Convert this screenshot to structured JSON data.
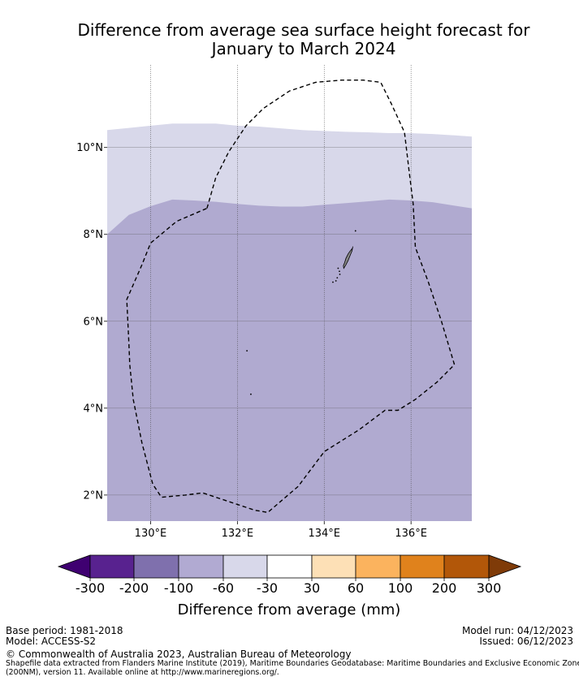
{
  "title": {
    "line1": "Difference from average sea surface height forecast for",
    "line2": "January to March 2024"
  },
  "map": {
    "extent": {
      "lon_min": 129.0,
      "lon_max": 137.4,
      "lat_min": 1.4,
      "lat_max": 11.9
    },
    "x_ticks": [
      {
        "value": 130,
        "label": "130°E"
      },
      {
        "value": 132,
        "label": "132°E"
      },
      {
        "value": 134,
        "label": "134°E"
      },
      {
        "value": 136,
        "label": "136°E"
      }
    ],
    "y_ticks": [
      {
        "value": 10,
        "label": "10°N"
      },
      {
        "value": 8,
        "label": "8°N"
      },
      {
        "value": 6,
        "label": "6°N"
      },
      {
        "value": 4,
        "label": "4°N"
      },
      {
        "value": 2,
        "label": "2°N"
      }
    ],
    "colors": {
      "band_minus60_to_minus30": "#d8d8ea",
      "band_minus100_to_minus60": "#b0aad0",
      "eez_boundary": "#000000",
      "land": "#888888"
    },
    "band_minus60_to_minus30_top": [
      [
        129.0,
        10.4
      ],
      [
        129.5,
        10.45
      ],
      [
        130.0,
        10.5
      ],
      [
        130.5,
        10.55
      ],
      [
        131.0,
        10.55
      ],
      [
        131.5,
        10.55
      ],
      [
        132.0,
        10.5
      ],
      [
        132.5,
        10.48
      ],
      [
        133.0,
        10.44
      ],
      [
        133.5,
        10.4
      ],
      [
        134.0,
        10.38
      ],
      [
        134.5,
        10.36
      ],
      [
        135.0,
        10.35
      ],
      [
        135.5,
        10.33
      ],
      [
        136.0,
        10.33
      ],
      [
        136.5,
        10.31
      ],
      [
        137.0,
        10.28
      ],
      [
        137.4,
        10.25
      ]
    ],
    "band_minus100_to_minus60_top": [
      [
        129.0,
        8.0
      ],
      [
        129.5,
        8.45
      ],
      [
        130.0,
        8.65
      ],
      [
        130.5,
        8.8
      ],
      [
        131.0,
        8.78
      ],
      [
        131.5,
        8.75
      ],
      [
        132.0,
        8.7
      ],
      [
        132.5,
        8.66
      ],
      [
        133.0,
        8.64
      ],
      [
        133.5,
        8.64
      ],
      [
        134.0,
        8.68
      ],
      [
        134.5,
        8.72
      ],
      [
        135.0,
        8.76
      ],
      [
        135.5,
        8.8
      ],
      [
        136.0,
        8.78
      ],
      [
        136.5,
        8.74
      ],
      [
        137.0,
        8.66
      ],
      [
        137.4,
        8.6
      ]
    ],
    "eez_boundary": [
      [
        131.3,
        8.6
      ],
      [
        131.5,
        9.3
      ],
      [
        131.8,
        9.9
      ],
      [
        132.2,
        10.5
      ],
      [
        132.6,
        10.9
      ],
      [
        133.2,
        11.3
      ],
      [
        133.8,
        11.5
      ],
      [
        134.4,
        11.55
      ],
      [
        134.9,
        11.55
      ],
      [
        135.3,
        11.5
      ],
      [
        135.55,
        11.0
      ],
      [
        135.85,
        10.35
      ],
      [
        135.95,
        9.5
      ],
      [
        136.05,
        8.7
      ],
      [
        136.1,
        7.7
      ],
      [
        136.4,
        6.9
      ],
      [
        136.7,
        6.0
      ],
      [
        137.0,
        5.0
      ],
      [
        136.6,
        4.6
      ],
      [
        136.1,
        4.2
      ],
      [
        135.7,
        3.95
      ],
      [
        135.4,
        3.95
      ],
      [
        134.8,
        3.5
      ],
      [
        134.0,
        3.0
      ],
      [
        133.4,
        2.2
      ],
      [
        132.7,
        1.6
      ],
      [
        132.4,
        1.65
      ],
      [
        131.8,
        1.85
      ],
      [
        131.2,
        2.05
      ],
      [
        130.8,
        2.0
      ],
      [
        130.25,
        1.95
      ],
      [
        130.05,
        2.25
      ],
      [
        129.8,
        3.2
      ],
      [
        129.6,
        4.2
      ],
      [
        129.52,
        5.0
      ],
      [
        129.5,
        5.5
      ],
      [
        129.45,
        6.5
      ],
      [
        129.8,
        7.3
      ],
      [
        130.0,
        7.8
      ],
      [
        130.6,
        8.3
      ],
      [
        131.3,
        8.6
      ]
    ],
    "land": {
      "main_island": [
        [
          134.45,
          7.22
        ],
        [
          134.5,
          7.3
        ],
        [
          134.55,
          7.4
        ],
        [
          134.6,
          7.52
        ],
        [
          134.64,
          7.62
        ],
        [
          134.66,
          7.72
        ],
        [
          134.65,
          7.68
        ],
        [
          134.6,
          7.62
        ],
        [
          134.55,
          7.55
        ],
        [
          134.5,
          7.45
        ],
        [
          134.47,
          7.35
        ],
        [
          134.44,
          7.28
        ]
      ],
      "small_islands": [
        [
          134.36,
          7.08
        ],
        [
          134.3,
          7.0
        ],
        [
          134.27,
          6.93
        ],
        [
          134.2,
          6.9
        ],
        [
          134.35,
          7.15
        ],
        [
          134.32,
          7.22
        ],
        [
          134.72,
          8.08
        ],
        [
          132.22,
          5.32
        ],
        [
          132.31,
          4.32
        ]
      ]
    }
  },
  "colorbar": {
    "colors": [
      "#3f0071",
      "#58228f",
      "#7f70ad",
      "#b1aad2",
      "#d8d8ea",
      "#ffffff",
      "#fde0b6",
      "#fbb35e",
      "#e0821c",
      "#b25709",
      "#7f3b08"
    ],
    "tick_labels": [
      "-300",
      "-200",
      "-100",
      "-60",
      "-30",
      "30",
      "60",
      "100",
      "200",
      "300"
    ],
    "label": "Difference from average (mm)"
  },
  "footer": {
    "base_period": "Base period: 1981-2018",
    "model": "Model: ACCESS-S2",
    "model_run": "Model run: 04/12/2023",
    "issued": "Issued: 06/12/2023",
    "copyright": "© Commonwealth of Australia 2023, Australian Bureau of Meteorology",
    "shapefile_line1": "Shapefile data extracted from Flanders Marine Institute (2019), Maritime Boundaries Geodatabase: Maritime Boundaries and Exclusive Economic Zones",
    "shapefile_line2": "(200NM), version 11. Available online at http://www.marineregions.org/."
  }
}
